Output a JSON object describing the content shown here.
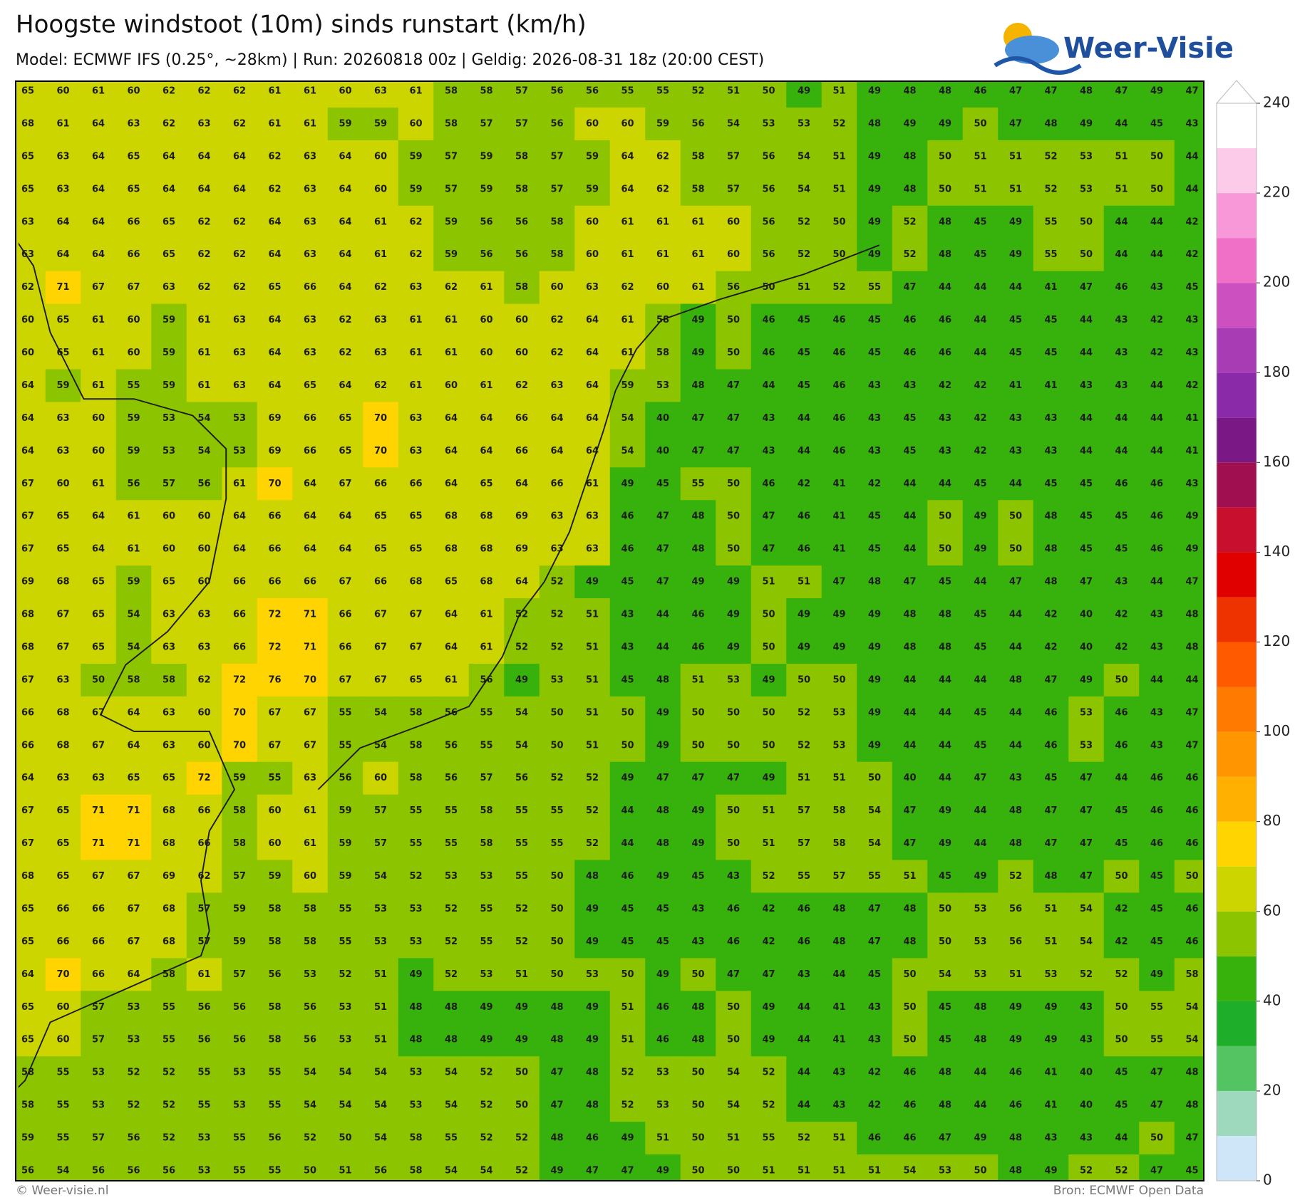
{
  "header": {
    "title": "Hoogste windstoot (10m) sinds runstart (km/h)",
    "subtitle": "Model: ECMWF IFS (0.25°, ~28km)  |  Run: 20260818 00z  |  Geldig: 2026-08-31 18z (20:00 CEST)"
  },
  "logo": {
    "text": "Weer-Visie"
  },
  "map": {
    "rows": [
      [
        65,
        60,
        61,
        60,
        62,
        62,
        62,
        61,
        61,
        60,
        63,
        61,
        58,
        58,
        57,
        56,
        56,
        55,
        55,
        52,
        51,
        50,
        49,
        51,
        49,
        48,
        48,
        46,
        47,
        47,
        48,
        47,
        49,
        47
      ],
      [
        68,
        61,
        64,
        63,
        62,
        63,
        62,
        61,
        61,
        59,
        59,
        60,
        58,
        57,
        57,
        56,
        60,
        60,
        59,
        56,
        54,
        53,
        53,
        52,
        48,
        49,
        49,
        50,
        47,
        48,
        49,
        44,
        45,
        43
      ],
      [
        65,
        63,
        64,
        65,
        64,
        64,
        64,
        62,
        63,
        64,
        60,
        59,
        57,
        59,
        58,
        57,
        59,
        64,
        62,
        58,
        57,
        56,
        54,
        51,
        49,
        48,
        50,
        51,
        51,
        52,
        53,
        51,
        50,
        44
      ],
      [
        65,
        63,
        64,
        65,
        64,
        64,
        64,
        62,
        63,
        64,
        60,
        59,
        57,
        59,
        58,
        57,
        59,
        64,
        62,
        58,
        57,
        56,
        54,
        51,
        49,
        48,
        50,
        51,
        51,
        52,
        53,
        51,
        50,
        44
      ],
      [
        63,
        64,
        64,
        66,
        65,
        62,
        62,
        64,
        63,
        64,
        61,
        62,
        59,
        56,
        56,
        58,
        60,
        61,
        61,
        61,
        60,
        56,
        52,
        50,
        49,
        52,
        48,
        45,
        49,
        55,
        50,
        44,
        44,
        42
      ],
      [
        63,
        64,
        64,
        66,
        65,
        62,
        62,
        64,
        63,
        64,
        61,
        62,
        59,
        56,
        56,
        58,
        60,
        61,
        61,
        61,
        60,
        56,
        52,
        50,
        49,
        52,
        48,
        45,
        49,
        55,
        50,
        44,
        44,
        42
      ],
      [
        62,
        71,
        67,
        67,
        63,
        62,
        62,
        65,
        66,
        64,
        62,
        63,
        62,
        61,
        58,
        60,
        63,
        62,
        60,
        61,
        56,
        50,
        51,
        52,
        55,
        47,
        44,
        44,
        44,
        41,
        47,
        46,
        43,
        45
      ],
      [
        60,
        65,
        61,
        60,
        59,
        61,
        63,
        64,
        63,
        62,
        63,
        61,
        61,
        60,
        60,
        62,
        64,
        61,
        58,
        49,
        50,
        46,
        45,
        46,
        45,
        46,
        46,
        44,
        45,
        45,
        44,
        43,
        42,
        43
      ],
      [
        60,
        65,
        61,
        60,
        59,
        61,
        63,
        64,
        63,
        62,
        63,
        61,
        61,
        60,
        60,
        62,
        64,
        61,
        58,
        49,
        50,
        46,
        45,
        46,
        45,
        46,
        46,
        44,
        45,
        45,
        44,
        43,
        42,
        43
      ],
      [
        64,
        59,
        61,
        55,
        59,
        61,
        63,
        64,
        65,
        64,
        62,
        61,
        60,
        61,
        62,
        63,
        64,
        59,
        53,
        48,
        47,
        44,
        45,
        46,
        43,
        43,
        42,
        42,
        41,
        41,
        43,
        43,
        44,
        42
      ],
      [
        64,
        63,
        60,
        59,
        53,
        54,
        53,
        69,
        66,
        65,
        70,
        63,
        64,
        64,
        66,
        64,
        64,
        54,
        40,
        47,
        47,
        43,
        44,
        46,
        43,
        45,
        43,
        42,
        43,
        43,
        44,
        44,
        44,
        41
      ],
      [
        64,
        63,
        60,
        59,
        53,
        54,
        53,
        69,
        66,
        65,
        70,
        63,
        64,
        64,
        66,
        64,
        64,
        54,
        40,
        47,
        47,
        43,
        44,
        46,
        43,
        45,
        43,
        42,
        43,
        43,
        44,
        44,
        44,
        41
      ],
      [
        67,
        60,
        61,
        56,
        57,
        56,
        61,
        70,
        64,
        67,
        66,
        66,
        64,
        65,
        64,
        66,
        61,
        49,
        45,
        55,
        50,
        46,
        42,
        41,
        42,
        44,
        44,
        45,
        44,
        45,
        45,
        46,
        46,
        43
      ],
      [
        67,
        65,
        64,
        61,
        60,
        60,
        64,
        66,
        64,
        64,
        65,
        65,
        68,
        68,
        69,
        63,
        63,
        46,
        47,
        48,
        50,
        47,
        46,
        41,
        45,
        44,
        50,
        49,
        50,
        48,
        45,
        45,
        46,
        49
      ],
      [
        67,
        65,
        64,
        61,
        60,
        60,
        64,
        66,
        64,
        64,
        65,
        65,
        68,
        68,
        69,
        63,
        63,
        46,
        47,
        48,
        50,
        47,
        46,
        41,
        45,
        44,
        50,
        49,
        50,
        48,
        45,
        45,
        46,
        49
      ],
      [
        69,
        68,
        65,
        59,
        65,
        60,
        66,
        66,
        66,
        67,
        66,
        68,
        65,
        68,
        64,
        52,
        49,
        45,
        47,
        49,
        49,
        51,
        51,
        47,
        48,
        47,
        45,
        44,
        47,
        48,
        47,
        43,
        44,
        47
      ],
      [
        68,
        67,
        65,
        54,
        63,
        63,
        66,
        72,
        71,
        66,
        67,
        67,
        64,
        61,
        52,
        52,
        51,
        43,
        44,
        46,
        49,
        50,
        49,
        49,
        49,
        48,
        48,
        45,
        44,
        42,
        40,
        42,
        43,
        48
      ],
      [
        68,
        67,
        65,
        54,
        63,
        63,
        66,
        72,
        71,
        66,
        67,
        67,
        64,
        61,
        52,
        52,
        51,
        43,
        44,
        46,
        49,
        50,
        49,
        49,
        49,
        48,
        48,
        45,
        44,
        42,
        40,
        42,
        43,
        48
      ],
      [
        67,
        63,
        50,
        58,
        58,
        62,
        72,
        76,
        70,
        67,
        67,
        65,
        61,
        56,
        49,
        53,
        51,
        45,
        48,
        51,
        53,
        49,
        50,
        50,
        49,
        44,
        44,
        44,
        48,
        47,
        49,
        50,
        44,
        44
      ],
      [
        66,
        68,
        67,
        64,
        63,
        60,
        70,
        67,
        67,
        55,
        54,
        58,
        56,
        55,
        54,
        50,
        51,
        50,
        49,
        50,
        50,
        50,
        52,
        53,
        49,
        44,
        44,
        45,
        44,
        46,
        53,
        46,
        43,
        47
      ],
      [
        66,
        68,
        67,
        64,
        63,
        60,
        70,
        67,
        67,
        55,
        54,
        58,
        56,
        55,
        54,
        50,
        51,
        50,
        49,
        50,
        50,
        50,
        52,
        53,
        49,
        44,
        44,
        45,
        44,
        46,
        53,
        46,
        43,
        47
      ],
      [
        64,
        63,
        63,
        65,
        65,
        72,
        59,
        55,
        63,
        56,
        60,
        58,
        56,
        57,
        56,
        52,
        52,
        49,
        47,
        47,
        47,
        49,
        51,
        51,
        50,
        40,
        44,
        47,
        43,
        45,
        47,
        44,
        46,
        46
      ],
      [
        67,
        65,
        71,
        71,
        68,
        66,
        58,
        60,
        61,
        59,
        57,
        55,
        55,
        58,
        55,
        55,
        52,
        44,
        48,
        49,
        50,
        51,
        57,
        58,
        54,
        47,
        49,
        44,
        48,
        47,
        47,
        45,
        46,
        46
      ],
      [
        67,
        65,
        71,
        71,
        68,
        66,
        58,
        60,
        61,
        59,
        57,
        55,
        55,
        58,
        55,
        55,
        52,
        44,
        48,
        49,
        50,
        51,
        57,
        58,
        54,
        47,
        49,
        44,
        48,
        47,
        47,
        45,
        46,
        46
      ],
      [
        68,
        65,
        67,
        67,
        69,
        62,
        57,
        59,
        60,
        59,
        54,
        52,
        53,
        53,
        55,
        50,
        48,
        46,
        49,
        45,
        43,
        52,
        55,
        57,
        55,
        51,
        45,
        49,
        52,
        48,
        47,
        50,
        45,
        50
      ],
      [
        65,
        66,
        66,
        67,
        68,
        57,
        59,
        58,
        58,
        55,
        53,
        53,
        52,
        55,
        52,
        50,
        49,
        45,
        45,
        43,
        46,
        42,
        46,
        48,
        47,
        48,
        50,
        53,
        56,
        51,
        54,
        42,
        45,
        46
      ],
      [
        65,
        66,
        66,
        67,
        68,
        57,
        59,
        58,
        58,
        55,
        53,
        53,
        52,
        55,
        52,
        50,
        49,
        45,
        45,
        43,
        46,
        42,
        46,
        48,
        47,
        48,
        50,
        53,
        56,
        51,
        54,
        42,
        45,
        46
      ],
      [
        64,
        70,
        66,
        64,
        58,
        61,
        57,
        56,
        53,
        52,
        51,
        49,
        52,
        53,
        51,
        50,
        53,
        50,
        49,
        50,
        47,
        47,
        43,
        44,
        45,
        50,
        54,
        53,
        51,
        53,
        52,
        52,
        49,
        58
      ],
      [
        65,
        60,
        57,
        53,
        55,
        56,
        56,
        58,
        56,
        53,
        51,
        48,
        48,
        49,
        49,
        48,
        49,
        51,
        46,
        48,
        50,
        49,
        44,
        41,
        43,
        50,
        45,
        48,
        49,
        49,
        43,
        50,
        55,
        54
      ],
      [
        65,
        60,
        57,
        53,
        55,
        56,
        56,
        58,
        56,
        53,
        51,
        48,
        48,
        49,
        49,
        48,
        49,
        51,
        46,
        48,
        50,
        49,
        44,
        41,
        43,
        50,
        45,
        48,
        49,
        49,
        43,
        50,
        55,
        54
      ],
      [
        58,
        55,
        53,
        52,
        52,
        55,
        53,
        55,
        54,
        54,
        54,
        53,
        54,
        52,
        50,
        47,
        48,
        52,
        53,
        50,
        54,
        52,
        44,
        43,
        42,
        46,
        48,
        44,
        46,
        41,
        40,
        45,
        47,
        48
      ],
      [
        58,
        55,
        53,
        52,
        52,
        55,
        53,
        55,
        54,
        54,
        54,
        53,
        54,
        52,
        50,
        47,
        48,
        52,
        53,
        50,
        54,
        52,
        44,
        43,
        42,
        46,
        48,
        44,
        46,
        41,
        40,
        45,
        47,
        48
      ],
      [
        59,
        55,
        57,
        56,
        52,
        53,
        55,
        56,
        52,
        50,
        54,
        58,
        55,
        52,
        52,
        48,
        46,
        49,
        51,
        50,
        51,
        55,
        52,
        51,
        46,
        46,
        47,
        49,
        48,
        43,
        43,
        44,
        50,
        47
      ],
      [
        56,
        54,
        56,
        56,
        56,
        53,
        55,
        55,
        50,
        51,
        56,
        58,
        54,
        54,
        52,
        49,
        47,
        47,
        49,
        50,
        50,
        51,
        51,
        51,
        51,
        54,
        53,
        50,
        48,
        49,
        52,
        52,
        47,
        45
      ]
    ]
  },
  "colorbar": {
    "levels": [
      0,
      10,
      20,
      30,
      40,
      50,
      60,
      70,
      80,
      90,
      100,
      110,
      120,
      130,
      140,
      150,
      160,
      170,
      180,
      190,
      200,
      210,
      220,
      230,
      240
    ],
    "colors": [
      "#cfe6f8",
      "#9fd9bd",
      "#54c463",
      "#1fae2a",
      "#37b10c",
      "#8cc500",
      "#cdd500",
      "#ffd400",
      "#ffb000",
      "#ff9500",
      "#ff7a00",
      "#ff5a00",
      "#ee3300",
      "#e00000",
      "#c8102e",
      "#a01050",
      "#7a1885",
      "#8a2aa8",
      "#a83cb5",
      "#cc50c0",
      "#f070c8",
      "#f898d8",
      "#fccbe9",
      "#ffffff"
    ],
    "ticks": [
      0,
      20,
      40,
      60,
      80,
      100,
      120,
      140,
      160,
      180,
      200,
      220,
      240
    ]
  },
  "footer": {
    "left": "© Weer-visie.nl",
    "right": "Bron: ECMWF Open Data"
  }
}
